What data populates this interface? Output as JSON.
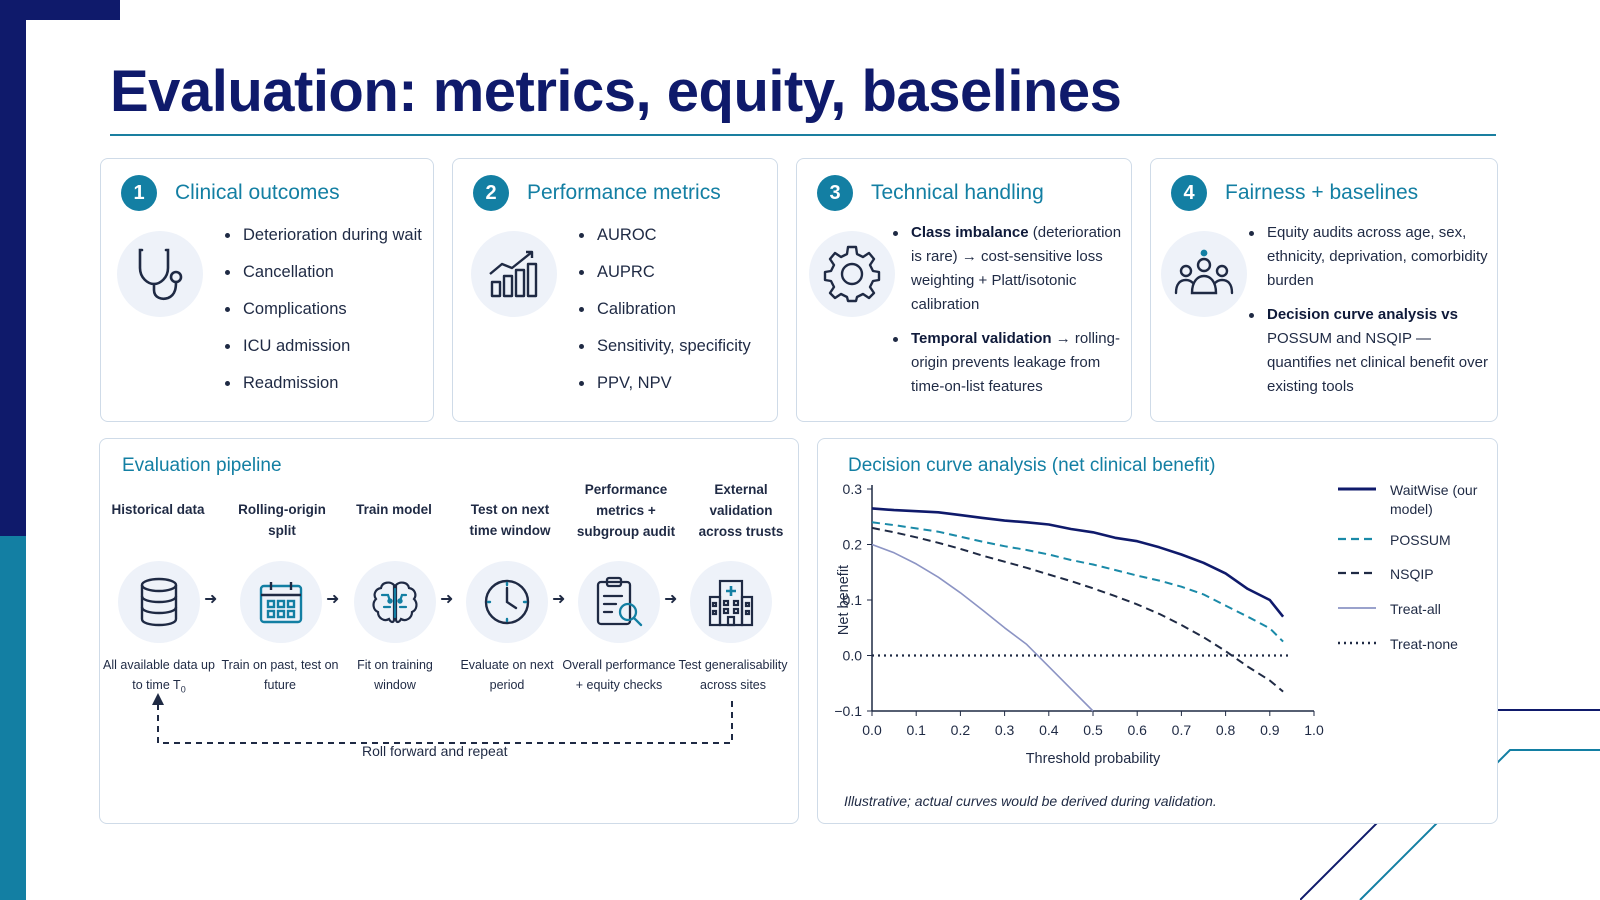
{
  "title": "Evaluation: metrics, equity, baselines",
  "cards": [
    {
      "number": "1",
      "title": "Clinical outcomes",
      "icon": "stethoscope-icon",
      "items": [
        "Deterioration during wait",
        "Cancellation",
        "Complications",
        "ICU admission",
        "Readmission"
      ]
    },
    {
      "number": "2",
      "title": "Performance metrics",
      "icon": "bar-chart-icon",
      "items": [
        "AUROC",
        "AUPRC",
        "Calibration",
        "Sensitivity, specificity",
        "PPV, NPV"
      ]
    },
    {
      "number": "3",
      "title": "Technical handling",
      "icon": "gear-icon",
      "items": [
        {
          "bold": "Class imbalance",
          "text": " (deterioration is rare) → cost-sensitive loss weighting + Platt/isotonic calibration"
        },
        {
          "bold": "Temporal validation",
          "text": " → rolling-origin prevents leakage from time-on-list features"
        }
      ]
    },
    {
      "number": "4",
      "title": "Fairness + baselines",
      "icon": "people-group-icon",
      "items": [
        {
          "bold": "",
          "text": "Equity audits across age, sex, ethnicity, deprivation, comorbidity burden"
        },
        {
          "bold": "Decision curve analysis vs",
          "text": " POSSUM and NSQIP — quantifies net clinical benefit over existing tools"
        }
      ]
    }
  ],
  "pipeline": {
    "title": "Evaluation pipeline",
    "steps": [
      {
        "label": "Historical data",
        "icon": "database-icon",
        "desc": "All available data up to time T",
        "desc_sub": "0"
      },
      {
        "label": "Rolling-origin split",
        "icon": "calendar-icon",
        "desc": "Train on past, test on future",
        "desc_sub": ""
      },
      {
        "label": "Train model",
        "icon": "brain-icon",
        "desc": "Fit on training window",
        "desc_sub": ""
      },
      {
        "label": "Test on next time window",
        "icon": "clock-icon",
        "desc": "Evaluate on next period",
        "desc_sub": ""
      },
      {
        "label": "Performance metrics + subgroup audit",
        "icon": "clipboard-search-icon",
        "desc": "Overall performance + equity checks",
        "desc_sub": ""
      },
      {
        "label": "External validation across trusts",
        "icon": "hospital-icon",
        "desc": "Test generalisability across sites",
        "desc_sub": ""
      }
    ],
    "loop_label": "Roll forward and repeat"
  },
  "dca": {
    "title": "Decision curve analysis (net clinical benefit)",
    "note": "Illustrative; actual curves would be derived during validation."
  },
  "chart_data": {
    "type": "line",
    "title": "Decision curve analysis (net clinical benefit)",
    "xlabel": "Threshold probability",
    "ylabel": "Net benefit",
    "xlim": [
      0.0,
      1.0
    ],
    "ylim": [
      -0.1,
      0.3
    ],
    "xticks": [
      "0.0",
      "0.1",
      "0.2",
      "0.3",
      "0.4",
      "0.5",
      "0.6",
      "0.7",
      "0.8",
      "0.9",
      "1.0"
    ],
    "yticks": [
      "0.3",
      "0.2",
      "0.1",
      "0.0",
      "−0.1"
    ],
    "legend_position": "right",
    "series": [
      {
        "name": "WaitWise (our model)",
        "style": "solid-thick",
        "color": "#0f1a6b",
        "x": [
          0.0,
          0.05,
          0.1,
          0.15,
          0.2,
          0.25,
          0.3,
          0.35,
          0.4,
          0.45,
          0.5,
          0.55,
          0.6,
          0.65,
          0.7,
          0.75,
          0.8,
          0.85,
          0.9,
          0.93
        ],
        "y": [
          0.265,
          0.262,
          0.26,
          0.258,
          0.253,
          0.248,
          0.243,
          0.24,
          0.236,
          0.228,
          0.222,
          0.212,
          0.206,
          0.195,
          0.182,
          0.167,
          0.148,
          0.12,
          0.1,
          0.07
        ]
      },
      {
        "name": "POSSUM",
        "style": "dashed",
        "color": "#1a8aa8",
        "x": [
          0.0,
          0.05,
          0.1,
          0.15,
          0.2,
          0.25,
          0.3,
          0.35,
          0.4,
          0.45,
          0.5,
          0.55,
          0.6,
          0.65,
          0.7,
          0.75,
          0.8,
          0.85,
          0.9,
          0.93
        ],
        "y": [
          0.24,
          0.235,
          0.229,
          0.223,
          0.214,
          0.205,
          0.197,
          0.19,
          0.182,
          0.172,
          0.164,
          0.154,
          0.144,
          0.135,
          0.124,
          0.11,
          0.09,
          0.07,
          0.049,
          0.025
        ]
      },
      {
        "name": "NSQIP",
        "style": "dashed",
        "color": "#1f2a44",
        "x": [
          0.0,
          0.05,
          0.1,
          0.15,
          0.2,
          0.25,
          0.3,
          0.35,
          0.4,
          0.45,
          0.5,
          0.55,
          0.6,
          0.65,
          0.7,
          0.75,
          0.8,
          0.85,
          0.9,
          0.93
        ],
        "y": [
          0.23,
          0.222,
          0.213,
          0.203,
          0.192,
          0.18,
          0.169,
          0.158,
          0.146,
          0.134,
          0.121,
          0.107,
          0.092,
          0.075,
          0.055,
          0.033,
          0.008,
          -0.02,
          -0.045,
          -0.065
        ]
      },
      {
        "name": "Treat-all",
        "style": "solid-thin",
        "color": "#8c94c4",
        "x": [
          0.0,
          0.05,
          0.1,
          0.15,
          0.2,
          0.25,
          0.3,
          0.35,
          0.4,
          0.45,
          0.5
        ],
        "y": [
          0.2,
          0.185,
          0.165,
          0.141,
          0.113,
          0.082,
          0.05,
          0.02,
          -0.02,
          -0.06,
          -0.1
        ]
      },
      {
        "name": "Treat-none",
        "style": "dotted",
        "color": "#1f2a44",
        "x": [
          0.0,
          0.95
        ],
        "y": [
          0.0,
          0.0
        ]
      }
    ]
  },
  "colors": {
    "navy": "#0f1a6b",
    "teal": "#137fa3",
    "icon_bg": "#eef2f9",
    "border": "#cfdbe8"
  }
}
